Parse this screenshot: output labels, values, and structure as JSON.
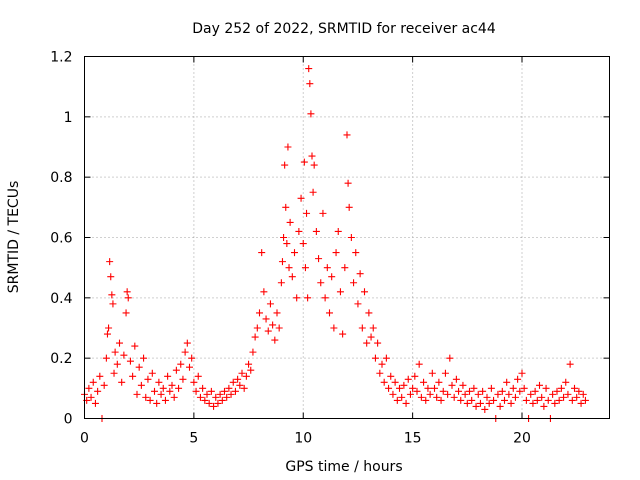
{
  "chart_data": {
    "type": "scatter",
    "title": "Day 252 of 2022, SRMTID for receiver ac44",
    "xlabel": "GPS time / hours",
    "ylabel": "SRMTID / TECUs",
    "xlim": [
      0,
      24
    ],
    "ylim": [
      0,
      1.2
    ],
    "x_ticks": [
      0,
      5,
      10,
      15,
      20
    ],
    "y_ticks": [
      0,
      0.2,
      0.4,
      0.6,
      0.8,
      1,
      1.2
    ],
    "x_tick_labels": [
      "0",
      "5",
      "10",
      "15",
      "20"
    ],
    "y_tick_labels": [
      "0",
      "0.2",
      "0.4",
      "0.6",
      "0.8",
      "1",
      "1.2"
    ],
    "grid": true,
    "marker": "+",
    "series": [
      {
        "name": "SRMTID",
        "color": "#ff0000",
        "points": [
          [
            0.0,
            0.08
          ],
          [
            0.1,
            0.06
          ],
          [
            0.2,
            0.1
          ],
          [
            0.3,
            0.07
          ],
          [
            0.4,
            0.12
          ],
          [
            0.5,
            0.05
          ],
          [
            0.6,
            0.09
          ],
          [
            0.7,
            0.14
          ],
          [
            0.8,
            0.0
          ],
          [
            0.9,
            0.11
          ],
          [
            1.0,
            0.2
          ],
          [
            1.05,
            0.28
          ],
          [
            1.1,
            0.3
          ],
          [
            1.15,
            0.52
          ],
          [
            1.2,
            0.47
          ],
          [
            1.25,
            0.41
          ],
          [
            1.3,
            0.38
          ],
          [
            1.35,
            0.15
          ],
          [
            1.4,
            0.22
          ],
          [
            1.5,
            0.18
          ],
          [
            1.6,
            0.25
          ],
          [
            1.7,
            0.12
          ],
          [
            1.8,
            0.21
          ],
          [
            1.9,
            0.35
          ],
          [
            1.95,
            0.42
          ],
          [
            2.0,
            0.4
          ],
          [
            2.1,
            0.19
          ],
          [
            2.2,
            0.14
          ],
          [
            2.3,
            0.24
          ],
          [
            2.4,
            0.08
          ],
          [
            2.5,
            0.17
          ],
          [
            2.6,
            0.11
          ],
          [
            2.7,
            0.2
          ],
          [
            2.8,
            0.07
          ],
          [
            2.9,
            0.13
          ],
          [
            3.0,
            0.06
          ],
          [
            3.1,
            0.15
          ],
          [
            3.2,
            0.09
          ],
          [
            3.3,
            0.05
          ],
          [
            3.4,
            0.12
          ],
          [
            3.5,
            0.08
          ],
          [
            3.6,
            0.1
          ],
          [
            3.7,
            0.06
          ],
          [
            3.8,
            0.14
          ],
          [
            3.9,
            0.09
          ],
          [
            4.0,
            0.11
          ],
          [
            4.1,
            0.07
          ],
          [
            4.2,
            0.16
          ],
          [
            4.3,
            0.1
          ],
          [
            4.4,
            0.18
          ],
          [
            4.5,
            0.13
          ],
          [
            4.6,
            0.22
          ],
          [
            4.7,
            0.25
          ],
          [
            4.8,
            0.17
          ],
          [
            4.9,
            0.2
          ],
          [
            5.0,
            0.12
          ],
          [
            5.1,
            0.09
          ],
          [
            5.2,
            0.14
          ],
          [
            5.3,
            0.07
          ],
          [
            5.4,
            0.1
          ],
          [
            5.5,
            0.06
          ],
          [
            5.6,
            0.08
          ],
          [
            5.7,
            0.05
          ],
          [
            5.8,
            0.09
          ],
          [
            5.9,
            0.04
          ],
          [
            6.0,
            0.07
          ],
          [
            6.1,
            0.05
          ],
          [
            6.2,
            0.08
          ],
          [
            6.3,
            0.06
          ],
          [
            6.4,
            0.09
          ],
          [
            6.5,
            0.07
          ],
          [
            6.6,
            0.1
          ],
          [
            6.7,
            0.08
          ],
          [
            6.8,
            0.12
          ],
          [
            6.9,
            0.09
          ],
          [
            7.0,
            0.13
          ],
          [
            7.1,
            0.11
          ],
          [
            7.2,
            0.15
          ],
          [
            7.3,
            0.1
          ],
          [
            7.4,
            0.14
          ],
          [
            7.5,
            0.18
          ],
          [
            7.6,
            0.16
          ],
          [
            7.7,
            0.22
          ],
          [
            7.8,
            0.27
          ],
          [
            7.9,
            0.3
          ],
          [
            8.0,
            0.35
          ],
          [
            8.1,
            0.55
          ],
          [
            8.2,
            0.42
          ],
          [
            8.3,
            0.33
          ],
          [
            8.4,
            0.29
          ],
          [
            8.5,
            0.38
          ],
          [
            8.6,
            0.31
          ],
          [
            8.7,
            0.26
          ],
          [
            8.8,
            0.35
          ],
          [
            8.9,
            0.3
          ],
          [
            9.0,
            0.45
          ],
          [
            9.05,
            0.52
          ],
          [
            9.1,
            0.6
          ],
          [
            9.15,
            0.84
          ],
          [
            9.2,
            0.7
          ],
          [
            9.25,
            0.58
          ],
          [
            9.3,
            0.9
          ],
          [
            9.35,
            0.5
          ],
          [
            9.4,
            0.65
          ],
          [
            9.5,
            0.47
          ],
          [
            9.6,
            0.55
          ],
          [
            9.7,
            0.4
          ],
          [
            9.8,
            0.62
          ],
          [
            9.9,
            0.73
          ],
          [
            10.0,
            0.58
          ],
          [
            10.05,
            0.85
          ],
          [
            10.1,
            0.5
          ],
          [
            10.15,
            0.68
          ],
          [
            10.2,
            0.4
          ],
          [
            10.25,
            1.16
          ],
          [
            10.3,
            1.11
          ],
          [
            10.35,
            1.01
          ],
          [
            10.4,
            0.87
          ],
          [
            10.45,
            0.75
          ],
          [
            10.5,
            0.84
          ],
          [
            10.6,
            0.62
          ],
          [
            10.7,
            0.53
          ],
          [
            10.8,
            0.45
          ],
          [
            10.9,
            0.68
          ],
          [
            11.0,
            0.4
          ],
          [
            11.1,
            0.5
          ],
          [
            11.2,
            0.35
          ],
          [
            11.3,
            0.47
          ],
          [
            11.4,
            0.3
          ],
          [
            11.5,
            0.55
          ],
          [
            11.6,
            0.62
          ],
          [
            11.7,
            0.42
          ],
          [
            11.8,
            0.28
          ],
          [
            11.9,
            0.5
          ],
          [
            12.0,
            0.94
          ],
          [
            12.05,
            0.78
          ],
          [
            12.1,
            0.7
          ],
          [
            12.2,
            0.6
          ],
          [
            12.3,
            0.45
          ],
          [
            12.4,
            0.55
          ],
          [
            12.5,
            0.38
          ],
          [
            12.6,
            0.48
          ],
          [
            12.7,
            0.3
          ],
          [
            12.8,
            0.42
          ],
          [
            12.9,
            0.25
          ],
          [
            13.0,
            0.35
          ],
          [
            13.1,
            0.27
          ],
          [
            13.2,
            0.3
          ],
          [
            13.3,
            0.2
          ],
          [
            13.4,
            0.25
          ],
          [
            13.5,
            0.15
          ],
          [
            13.6,
            0.18
          ],
          [
            13.7,
            0.12
          ],
          [
            13.8,
            0.2
          ],
          [
            13.9,
            0.1
          ],
          [
            14.0,
            0.14
          ],
          [
            14.1,
            0.08
          ],
          [
            14.2,
            0.12
          ],
          [
            14.3,
            0.06
          ],
          [
            14.4,
            0.1
          ],
          [
            14.5,
            0.07
          ],
          [
            14.6,
            0.11
          ],
          [
            14.7,
            0.05
          ],
          [
            14.8,
            0.13
          ],
          [
            14.9,
            0.08
          ],
          [
            15.0,
            0.1
          ],
          [
            15.1,
            0.14
          ],
          [
            15.2,
            0.09
          ],
          [
            15.3,
            0.18
          ],
          [
            15.4,
            0.07
          ],
          [
            15.5,
            0.12
          ],
          [
            15.6,
            0.06
          ],
          [
            15.7,
            0.1
          ],
          [
            15.8,
            0.08
          ],
          [
            15.9,
            0.15
          ],
          [
            16.0,
            0.1
          ],
          [
            16.1,
            0.07
          ],
          [
            16.2,
            0.12
          ],
          [
            16.3,
            0.06
          ],
          [
            16.4,
            0.09
          ],
          [
            16.5,
            0.15
          ],
          [
            16.6,
            0.08
          ],
          [
            16.7,
            0.2
          ],
          [
            16.8,
            0.11
          ],
          [
            16.9,
            0.07
          ],
          [
            17.0,
            0.13
          ],
          [
            17.1,
            0.09
          ],
          [
            17.2,
            0.06
          ],
          [
            17.3,
            0.11
          ],
          [
            17.4,
            0.08
          ],
          [
            17.5,
            0.05
          ],
          [
            17.6,
            0.09
          ],
          [
            17.7,
            0.06
          ],
          [
            17.8,
            0.1
          ],
          [
            17.9,
            0.04
          ],
          [
            18.0,
            0.08
          ],
          [
            18.1,
            0.05
          ],
          [
            18.2,
            0.09
          ],
          [
            18.3,
            0.03
          ],
          [
            18.4,
            0.07
          ],
          [
            18.5,
            0.05
          ],
          [
            18.6,
            0.1
          ],
          [
            18.7,
            0.06
          ],
          [
            18.8,
            0.0
          ],
          [
            18.9,
            0.08
          ],
          [
            19.0,
            0.04
          ],
          [
            19.1,
            0.09
          ],
          [
            19.2,
            0.06
          ],
          [
            19.3,
            0.12
          ],
          [
            19.4,
            0.08
          ],
          [
            19.5,
            0.05
          ],
          [
            19.6,
            0.1
          ],
          [
            19.7,
            0.07
          ],
          [
            19.8,
            0.13
          ],
          [
            19.9,
            0.09
          ],
          [
            20.0,
            0.15
          ],
          [
            20.1,
            0.1
          ],
          [
            20.2,
            0.06
          ],
          [
            20.3,
            0.0
          ],
          [
            20.4,
            0.08
          ],
          [
            20.5,
            0.05
          ],
          [
            20.6,
            0.09
          ],
          [
            20.7,
            0.06
          ],
          [
            20.8,
            0.11
          ],
          [
            20.9,
            0.07
          ],
          [
            21.0,
            0.04
          ],
          [
            21.1,
            0.1
          ],
          [
            21.2,
            0.06
          ],
          [
            21.3,
            0.0
          ],
          [
            21.4,
            0.08
          ],
          [
            21.5,
            0.05
          ],
          [
            21.6,
            0.09
          ],
          [
            21.7,
            0.06
          ],
          [
            21.8,
            0.1
          ],
          [
            21.9,
            0.07
          ],
          [
            22.0,
            0.12
          ],
          [
            22.1,
            0.08
          ],
          [
            22.2,
            0.18
          ],
          [
            22.3,
            0.06
          ],
          [
            22.4,
            0.1
          ],
          [
            22.5,
            0.07
          ],
          [
            22.6,
            0.09
          ],
          [
            22.7,
            0.05
          ],
          [
            22.8,
            0.08
          ],
          [
            22.9,
            0.06
          ]
        ]
      }
    ]
  }
}
